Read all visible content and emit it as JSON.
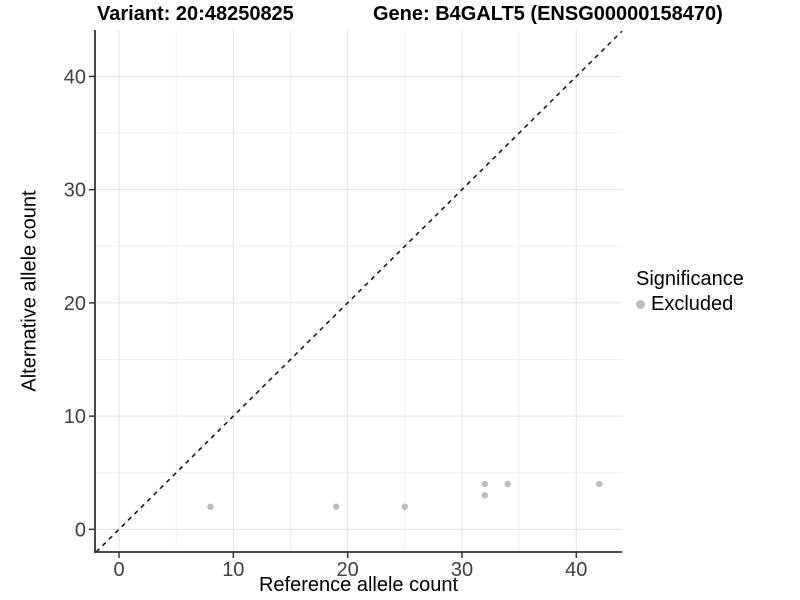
{
  "header": {
    "variant": "Variant: 20:48250825",
    "gene": "Gene: B4GALT5 (ENSG00000158470)"
  },
  "legend": {
    "title": "Significance",
    "items": [
      {
        "label": "Excluded",
        "color": "#bdbdbd"
      }
    ]
  },
  "colors": {
    "background": "#ffffff",
    "grid_major": "#e3e3e3",
    "grid_minor": "#f0f0f0",
    "axis": "#333333",
    "tick_label": "#404040",
    "point": "#bdbdbd",
    "ref_line": "#1a1a1a"
  },
  "chart_data": {
    "type": "scatter",
    "title": "Variant: 20:48250825  Gene: B4GALT5 (ENSG00000158470)",
    "xlabel": "Reference allele count",
    "ylabel": "Alternative allele count",
    "xlim": [
      -2.1,
      44.0
    ],
    "ylim": [
      -2.0,
      44.1
    ],
    "x_ticks": [
      0,
      10,
      20,
      30,
      40
    ],
    "y_ticks": [
      0,
      10,
      20,
      30,
      40
    ],
    "x_minor": [
      5,
      15,
      25,
      35
    ],
    "y_minor": [
      5,
      15,
      25,
      35
    ],
    "grid": true,
    "legend_position": "right-center",
    "series": [
      {
        "name": "Excluded",
        "color": "#bdbdbd",
        "points": [
          [
            8,
            2
          ],
          [
            19,
            2
          ],
          [
            25,
            2
          ],
          [
            32,
            3
          ],
          [
            32,
            4
          ],
          [
            34,
            4
          ],
          [
            42,
            4
          ]
        ]
      }
    ],
    "reference_line": {
      "type": "identity",
      "slope": 1,
      "intercept": 0,
      "style": "dashed",
      "color": "#1a1a1a"
    }
  }
}
